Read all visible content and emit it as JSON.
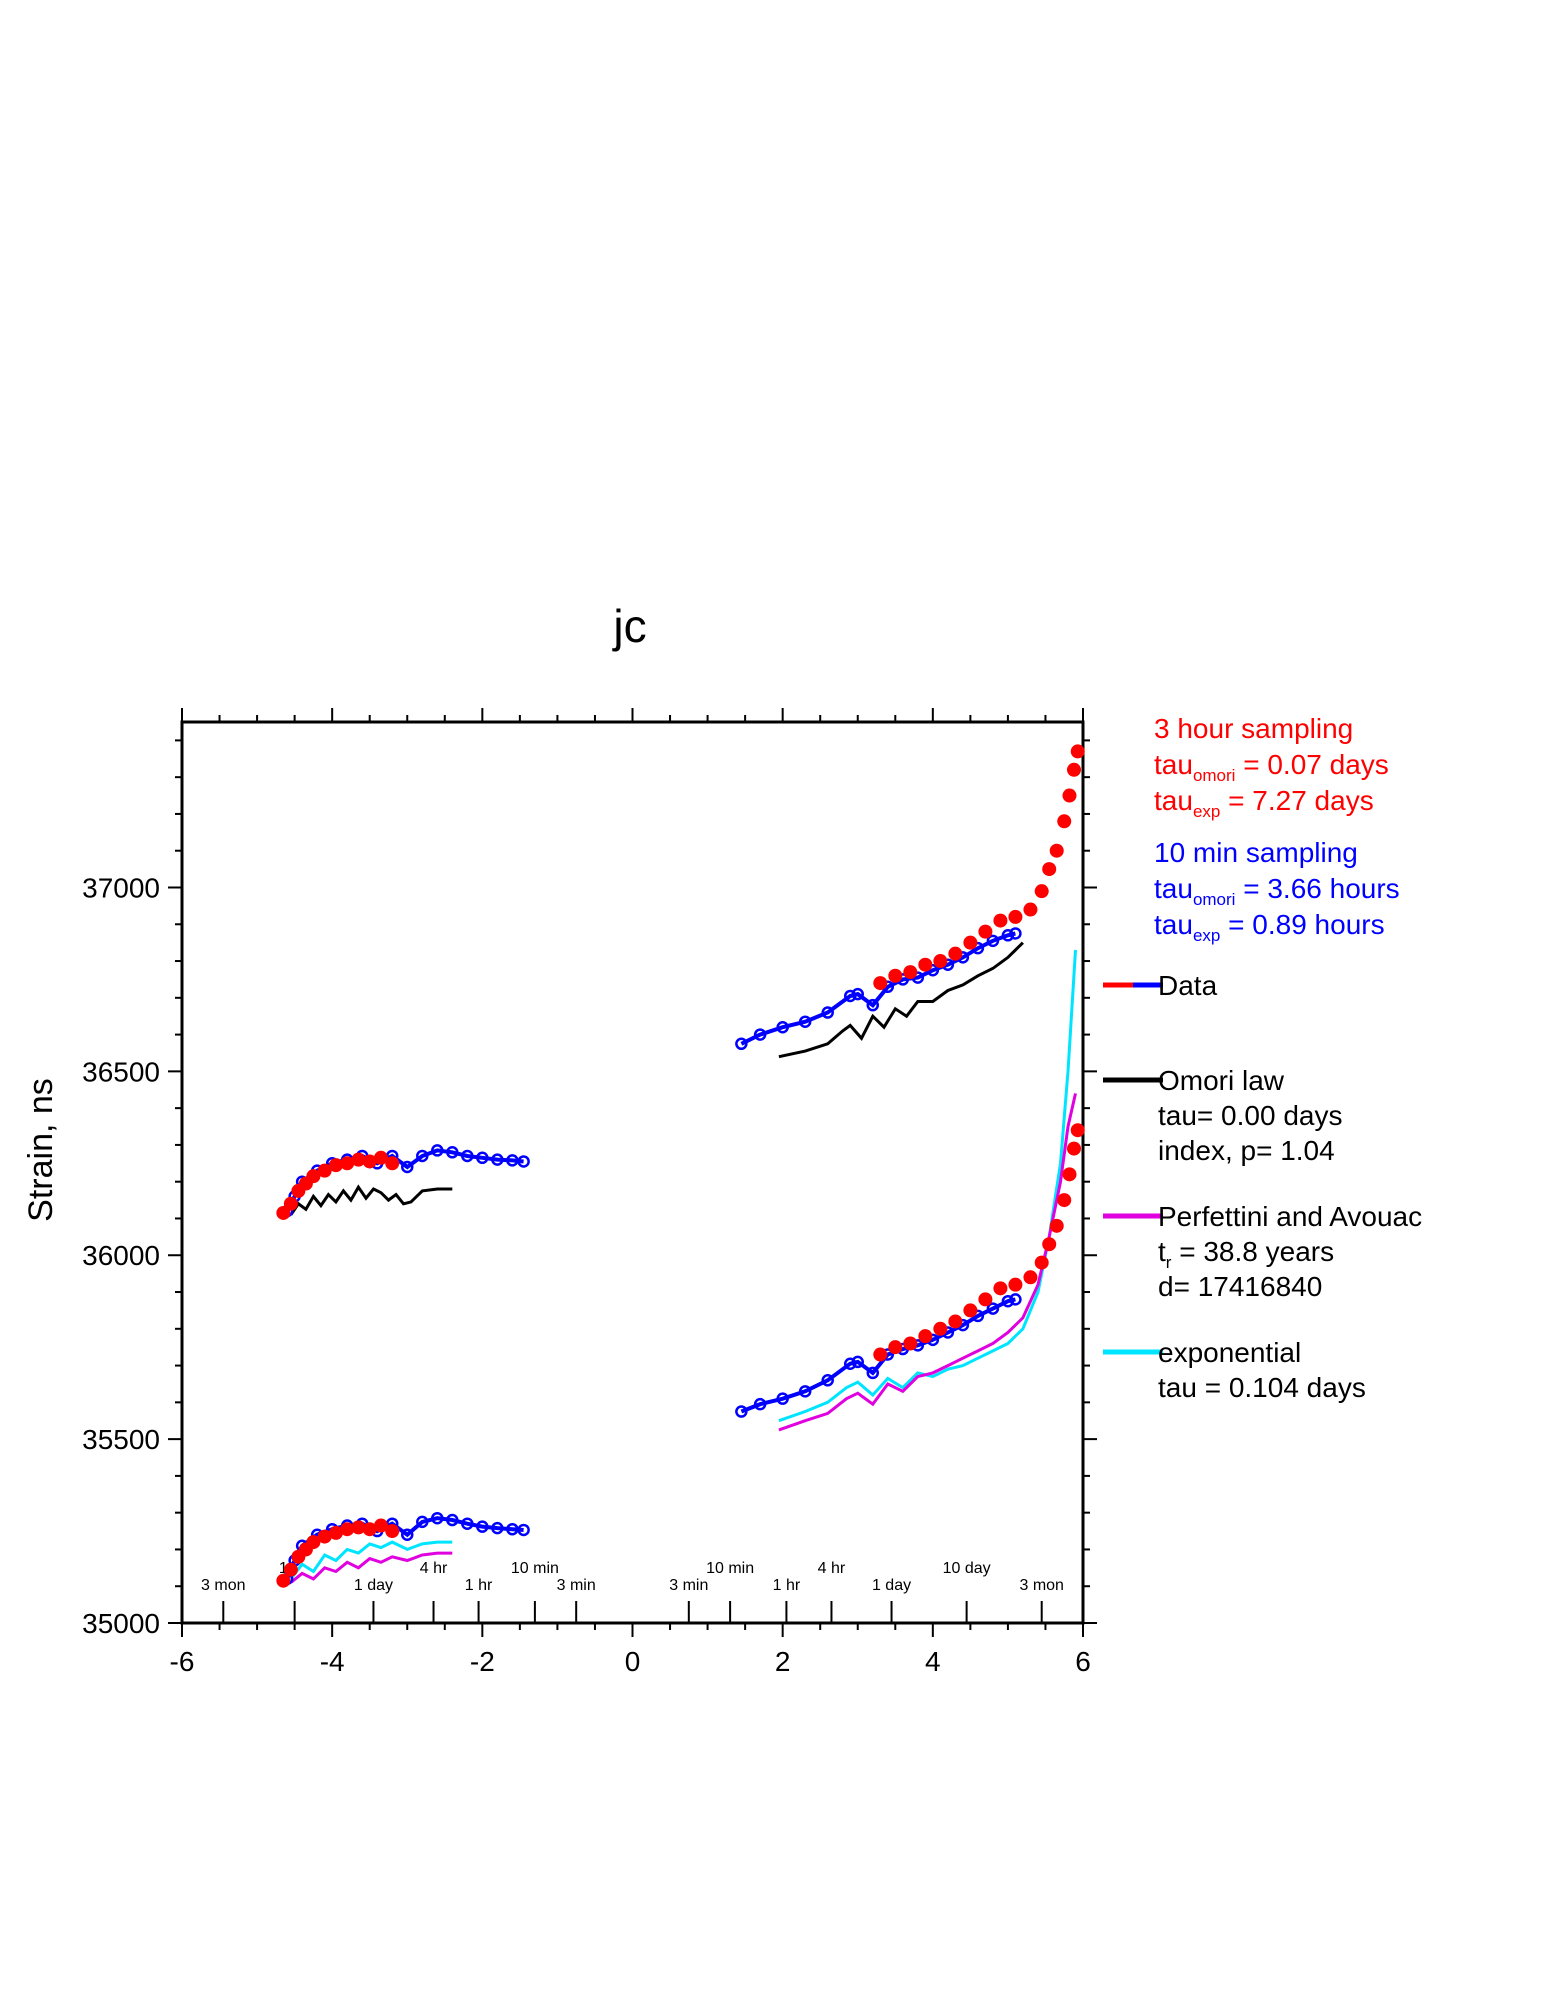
{
  "chart_data": {
    "type": "scatter",
    "title": "jc",
    "ylabel": "Strain, ns",
    "xlabel": "",
    "xlim": [
      -6,
      6
    ],
    "ylim": [
      35000,
      37450
    ],
    "x_ticks": [
      -6,
      -4,
      -2,
      0,
      2,
      4,
      6
    ],
    "y_ticks": [
      35000,
      35500,
      36000,
      36500,
      37000
    ],
    "grid": false,
    "time_labels_left": [
      {
        "x": -5.45,
        "row": "low",
        "text": "3 mon"
      },
      {
        "x": -4.65,
        "row": "high",
        "text": "1"
      },
      {
        "x": -3.45,
        "row": "low",
        "text": "1 day"
      },
      {
        "x": -2.65,
        "row": "high",
        "text": "4 hr"
      },
      {
        "x": -2.05,
        "row": "low",
        "text": "1 hr"
      },
      {
        "x": -1.3,
        "row": "high",
        "text": "10 min"
      },
      {
        "x": -0.75,
        "row": "low",
        "text": "3 min"
      }
    ],
    "time_labels_right": [
      {
        "x": 0.75,
        "row": "low",
        "text": "3 min"
      },
      {
        "x": 1.3,
        "row": "high",
        "text": "10 min"
      },
      {
        "x": 2.05,
        "row": "low",
        "text": "1 hr"
      },
      {
        "x": 2.65,
        "row": "high",
        "text": "4 hr"
      },
      {
        "x": 3.45,
        "row": "low",
        "text": "1 day"
      },
      {
        "x": 4.45,
        "row": "high",
        "text": "10 day"
      },
      {
        "x": 5.45,
        "row": "low",
        "text": "3 mon"
      }
    ],
    "time_tick_x": [
      -5.45,
      -4.5,
      -3.45,
      -2.65,
      -2.05,
      -1.3,
      -0.75,
      0.75,
      1.3,
      2.05,
      2.65,
      3.45,
      4.45,
      5.45
    ],
    "series": [
      {
        "name": "Data",
        "group": "upper-left-10min",
        "color": "#0000ff",
        "style": "circles",
        "x": [
          -4.6,
          -4.5,
          -4.4,
          -4.2,
          -4.0,
          -3.8,
          -3.6,
          -3.4,
          -3.2,
          -3.0,
          -2.8,
          -2.6,
          -2.4,
          -2.2,
          -2.0,
          -1.8,
          -1.6,
          -1.45
        ],
        "y": [
          36120,
          36160,
          36200,
          36230,
          36250,
          36260,
          36270,
          36250,
          36270,
          36240,
          36270,
          36285,
          36280,
          36270,
          36265,
          36260,
          36258,
          36255
        ]
      },
      {
        "name": "Data",
        "group": "upper-left-3hr",
        "color": "#ff0000",
        "style": "dots",
        "x": [
          -4.65,
          -4.55,
          -4.45,
          -4.35,
          -4.25,
          -4.1,
          -3.95,
          -3.8,
          -3.65,
          -3.5,
          -3.35,
          -3.2
        ],
        "y": [
          36115,
          36140,
          36175,
          36195,
          36215,
          36230,
          36245,
          36250,
          36260,
          36255,
          36265,
          36250
        ]
      },
      {
        "name": "Omori law",
        "group": "upper-left-model",
        "color": "#000000",
        "style": "line",
        "x": [
          -4.55,
          -4.45,
          -4.35,
          -4.25,
          -4.15,
          -4.05,
          -3.95,
          -3.85,
          -3.75,
          -3.65,
          -3.55,
          -3.45,
          -3.35,
          -3.25,
          -3.15,
          -3.05,
          -2.95,
          -2.8,
          -2.6,
          -2.4
        ],
        "y": [
          36110,
          36140,
          36125,
          36160,
          36135,
          36165,
          36145,
          36175,
          36150,
          36185,
          36155,
          36180,
          36170,
          36150,
          36165,
          36140,
          36145,
          36175,
          36180,
          36180
        ]
      },
      {
        "name": "Data",
        "group": "upper-right-10min",
        "color": "#0000ff",
        "style": "circles",
        "x": [
          1.45,
          1.7,
          2.0,
          2.3,
          2.6,
          2.9,
          3.0,
          3.2,
          3.4,
          3.6,
          3.8,
          4.0,
          4.2,
          4.4,
          4.6,
          4.8,
          5.0,
          5.1
        ],
        "y": [
          36575,
          36600,
          36620,
          36635,
          36660,
          36705,
          36710,
          36680,
          36730,
          36750,
          36755,
          36775,
          36790,
          36810,
          36835,
          36855,
          36870,
          36875
        ]
      },
      {
        "name": "Data",
        "group": "upper-right-3hr",
        "color": "#ff0000",
        "style": "dots",
        "x": [
          3.3,
          3.5,
          3.7,
          3.9,
          4.1,
          4.3,
          4.5,
          4.7,
          4.9,
          5.1,
          5.3,
          5.45,
          5.55,
          5.65,
          5.75,
          5.82,
          5.88,
          5.93
        ],
        "y": [
          36740,
          36760,
          36770,
          36790,
          36800,
          36820,
          36850,
          36880,
          36910,
          36920,
          36940,
          36990,
          37050,
          37100,
          37180,
          37250,
          37320,
          37370
        ]
      },
      {
        "name": "Omori law",
        "group": "upper-right-model",
        "color": "#000000",
        "style": "line",
        "x": [
          1.95,
          2.3,
          2.6,
          2.8,
          2.9,
          3.05,
          3.2,
          3.35,
          3.5,
          3.65,
          3.8,
          4.0,
          4.2,
          4.4,
          4.6,
          4.8,
          5.0,
          5.2
        ],
        "y": [
          36540,
          36555,
          36575,
          36610,
          36625,
          36590,
          36650,
          36620,
          36670,
          36650,
          36690,
          36690,
          36720,
          36735,
          36760,
          36780,
          36810,
          36850
        ]
      },
      {
        "name": "Data",
        "group": "lower-left-10min",
        "color": "#0000ff",
        "style": "circles",
        "x": [
          -4.6,
          -4.5,
          -4.4,
          -4.2,
          -4.0,
          -3.8,
          -3.6,
          -3.4,
          -3.2,
          -3.0,
          -2.8,
          -2.6,
          -2.4,
          -2.2,
          -2.0,
          -1.8,
          -1.6,
          -1.45
        ],
        "y": [
          35120,
          35170,
          35210,
          35240,
          35255,
          35265,
          35270,
          35250,
          35270,
          35240,
          35275,
          35285,
          35280,
          35270,
          35262,
          35258,
          35255,
          35253
        ]
      },
      {
        "name": "Data",
        "group": "lower-left-3hr",
        "color": "#ff0000",
        "style": "dots",
        "x": [
          -4.65,
          -4.55,
          -4.45,
          -4.35,
          -4.25,
          -4.1,
          -3.95,
          -3.8,
          -3.65,
          -3.5,
          -3.35,
          -3.2
        ],
        "y": [
          35115,
          35145,
          35180,
          35200,
          35220,
          35235,
          35245,
          35255,
          35260,
          35255,
          35265,
          35250
        ]
      },
      {
        "name": "exponential",
        "group": "lower-left-exp",
        "color": "#00e5ff",
        "style": "line",
        "x": [
          -4.55,
          -4.4,
          -4.25,
          -4.1,
          -3.95,
          -3.8,
          -3.65,
          -3.5,
          -3.35,
          -3.2,
          -3.0,
          -2.8,
          -2.6,
          -2.4
        ],
        "y": [
          35120,
          35160,
          35140,
          35185,
          35170,
          35200,
          35190,
          35215,
          35205,
          35220,
          35200,
          35215,
          35220,
          35220
        ]
      },
      {
        "name": "Perfettini and Avouac",
        "group": "lower-left-pa",
        "color": "#e000e0",
        "style": "line",
        "x": [
          -4.55,
          -4.4,
          -4.25,
          -4.1,
          -3.95,
          -3.8,
          -3.65,
          -3.5,
          -3.35,
          -3.2,
          -3.0,
          -2.8,
          -2.6,
          -2.4
        ],
        "y": [
          35110,
          35135,
          35120,
          35150,
          35140,
          35165,
          35150,
          35175,
          35165,
          35180,
          35170,
          35185,
          35190,
          35190
        ]
      },
      {
        "name": "Data",
        "group": "lower-right-10min",
        "color": "#0000ff",
        "style": "circles",
        "x": [
          1.45,
          1.7,
          2.0,
          2.3,
          2.6,
          2.9,
          3.0,
          3.2,
          3.4,
          3.6,
          3.8,
          4.0,
          4.2,
          4.4,
          4.6,
          4.8,
          5.0,
          5.1
        ],
        "y": [
          35575,
          35595,
          35610,
          35630,
          35660,
          35705,
          35710,
          35680,
          35730,
          35745,
          35755,
          35770,
          35790,
          35810,
          35835,
          35855,
          35875,
          35880
        ]
      },
      {
        "name": "Data",
        "group": "lower-right-3hr",
        "color": "#ff0000",
        "style": "dots",
        "x": [
          3.3,
          3.5,
          3.7,
          3.9,
          4.1,
          4.3,
          4.5,
          4.7,
          4.9,
          5.1,
          5.3,
          5.45,
          5.55,
          5.65,
          5.75,
          5.82,
          5.88,
          5.93
        ],
        "y": [
          35730,
          35750,
          35760,
          35780,
          35800,
          35820,
          35850,
          35880,
          35910,
          35920,
          35940,
          35980,
          36030,
          36080,
          36150,
          36220,
          36290,
          36340
        ]
      },
      {
        "name": "exponential",
        "group": "lower-right-exp",
        "color": "#00e5ff",
        "style": "line",
        "x": [
          1.95,
          2.3,
          2.6,
          2.85,
          3.0,
          3.2,
          3.4,
          3.6,
          3.8,
          4.0,
          4.2,
          4.4,
          4.6,
          4.8,
          5.0,
          5.2,
          5.4,
          5.55,
          5.7,
          5.8,
          5.9
        ],
        "y": [
          35550,
          35575,
          35600,
          35640,
          35655,
          35620,
          35665,
          35640,
          35680,
          35670,
          35690,
          35700,
          35720,
          35740,
          35760,
          35800,
          35900,
          36050,
          36250,
          36500,
          36830
        ]
      },
      {
        "name": "Perfettini and Avouac",
        "group": "lower-right-pa",
        "color": "#e000e0",
        "style": "line",
        "x": [
          1.95,
          2.3,
          2.6,
          2.85,
          3.0,
          3.2,
          3.4,
          3.6,
          3.8,
          4.0,
          4.2,
          4.4,
          4.6,
          4.8,
          5.0,
          5.2,
          5.4,
          5.55,
          5.7,
          5.8,
          5.9
        ],
        "y": [
          35525,
          35550,
          35570,
          35610,
          35625,
          35595,
          35650,
          35630,
          35670,
          35680,
          35700,
          35720,
          35740,
          35760,
          35790,
          35830,
          35920,
          36050,
          36200,
          36350,
          36440
        ]
      }
    ],
    "legend": {
      "placement": "right",
      "blocks": [
        {
          "color": "#ff0000",
          "lines": [
            {
              "text": "3 hour sampling"
            },
            {
              "text": " tau",
              "sub": "omori",
              "rest": " = 0.07 days"
            },
            {
              "text": " tau",
              "sub": "exp",
              "rest": " = 7.27 days"
            }
          ]
        },
        {
          "color": "#0000ff",
          "lines": [
            {
              "text": "10 min sampling"
            },
            {
              "text": " tau",
              "sub": "omori",
              "rest": " = 3.66 hours"
            },
            {
              "text": " tau",
              "sub": "exp",
              "rest": " = 0.89 hours"
            }
          ]
        }
      ],
      "entries": [
        {
          "name": "Data",
          "colors": [
            "#ff0000",
            "#0000ff"
          ],
          "lines": [
            {
              "text": "Data"
            }
          ]
        },
        {
          "name": "Omori law",
          "colors": [
            "#000000"
          ],
          "lines": [
            {
              "text": "Omori law"
            },
            {
              "text": "tau= 0.00 days"
            },
            {
              "text": "index, p= 1.04"
            }
          ]
        },
        {
          "name": "Perfettini and Avouac",
          "colors": [
            "#e000e0"
          ],
          "lines": [
            {
              "text": "Perfettini and Avouac"
            },
            {
              "text": "t",
              "sub": "r",
              "rest": " = 38.8 years"
            },
            {
              "text": "d= 17416840"
            }
          ]
        },
        {
          "name": "exponential",
          "colors": [
            "#00e5ff"
          ],
          "lines": [
            {
              "text": "exponential"
            },
            {
              "text": "tau = 0.104 days"
            }
          ]
        }
      ]
    }
  }
}
